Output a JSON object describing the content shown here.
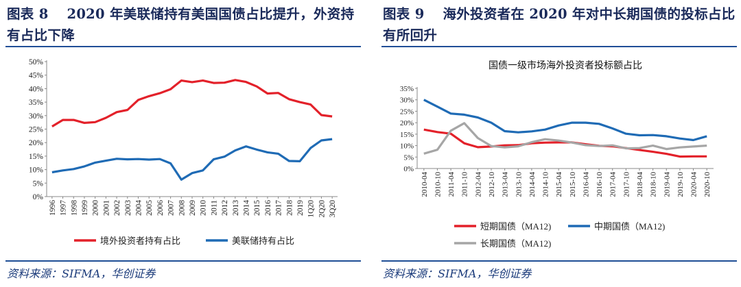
{
  "left": {
    "figure_title": "图表 8　 2020 年美联储持有美国国债占比提升，外资持有占比下降",
    "source": "资料来源：SIFMA，华创证券"
  },
  "right": {
    "figure_title": "图表 9　 海外投资者在 2020 年对中长期国债的投标占比有所回升",
    "source": "资料来源：SIFMA，华创证券"
  },
  "colors": {
    "red": "#e3212a",
    "blue": "#1f6bb5",
    "gray": "#a6a6a6",
    "title": "#1a2a5a"
  },
  "chart_data": [
    {
      "type": "line",
      "title": "",
      "categories": [
        "1996",
        "1997",
        "1998",
        "1999",
        "2000",
        "2001",
        "2002",
        "2003",
        "2004",
        "2005",
        "2006",
        "2007",
        "2008",
        "2009",
        "2010",
        "2011",
        "2012",
        "2013",
        "2014",
        "2015",
        "2016",
        "2017",
        "2018",
        "2019",
        "1Q20",
        "2Q20",
        "3Q20"
      ],
      "yticks": [
        "0%",
        "5%",
        "10%",
        "15%",
        "20%",
        "25%",
        "30%",
        "35%",
        "40%",
        "45%",
        "50%"
      ],
      "ylim": [
        0,
        50
      ],
      "legend_position": "bottom",
      "series": [
        {
          "name": "境外投资者持有占比",
          "color": "#e3212a",
          "values": [
            26,
            28.4,
            28.4,
            27.3,
            27.6,
            29.2,
            31.3,
            32.1,
            35.8,
            37.2,
            38.3,
            39.8,
            43.0,
            42.4,
            43.0,
            42.1,
            42.2,
            43.2,
            42.5,
            40.8,
            38.2,
            38.4,
            36.1,
            35.0,
            34.1,
            30.2,
            29.7
          ]
        },
        {
          "name": "美联储持有占比",
          "color": "#1f6bb5",
          "values": [
            9,
            9.7,
            10.2,
            11.2,
            12.6,
            13.3,
            14.0,
            13.8,
            13.9,
            13.7,
            13.9,
            12.3,
            6.3,
            8.7,
            9.7,
            13.8,
            14.8,
            17.1,
            18.6,
            17.4,
            16.4,
            15.9,
            13.2,
            13.1,
            18.0,
            20.8,
            21.3
          ]
        }
      ]
    },
    {
      "type": "line",
      "title": "国债一级市场海外投资者投标额占比",
      "categories": [
        "2010-04",
        "2010-10",
        "2011-04",
        "2011-10",
        "2012-04",
        "2012-10",
        "2013-04",
        "2013-10",
        "2014-04",
        "2014-10",
        "2015-04",
        "2015-10",
        "2016-04",
        "2016-10",
        "2017-04",
        "2017-10",
        "2018-04",
        "2018-10",
        "2019-04",
        "2019-10",
        "2020-04",
        "2020-10"
      ],
      "yticks": [
        "0%",
        "5%",
        "10%",
        "15%",
        "20%",
        "25%",
        "30%",
        "35%"
      ],
      "ylim": [
        0,
        35
      ],
      "legend_position": "bottom",
      "series": [
        {
          "name": "短期国债（MA12)",
          "color": "#e3212a",
          "values": [
            17,
            15.9,
            15.2,
            11,
            9.3,
            9.6,
            10.1,
            10.2,
            11,
            11.3,
            11.4,
            11.4,
            10.6,
            9.9,
            9.7,
            8.9,
            8.1,
            7.3,
            6.4,
            5.2,
            5.3,
            5.3
          ]
        },
        {
          "name": "中期国债（MA12)",
          "color": "#1f6bb5",
          "values": [
            30,
            27,
            24,
            23.5,
            22.3,
            20,
            16.3,
            15.8,
            16.2,
            17,
            18.8,
            20,
            20,
            19.5,
            17.5,
            15.2,
            14.5,
            14.6,
            14.1,
            13.1,
            12.4,
            14.1
          ]
        },
        {
          "name": "长期国债（MA12)",
          "color": "#a6a6a6",
          "values": [
            6.5,
            8.2,
            16.5,
            19.8,
            13.3,
            9.8,
            9.2,
            9.7,
            11.5,
            12.8,
            12.2,
            11.3,
            10.2,
            9.8,
            10.1,
            8.8,
            8.9,
            10,
            8.5,
            9.2,
            9.6,
            10
          ]
        }
      ]
    }
  ]
}
